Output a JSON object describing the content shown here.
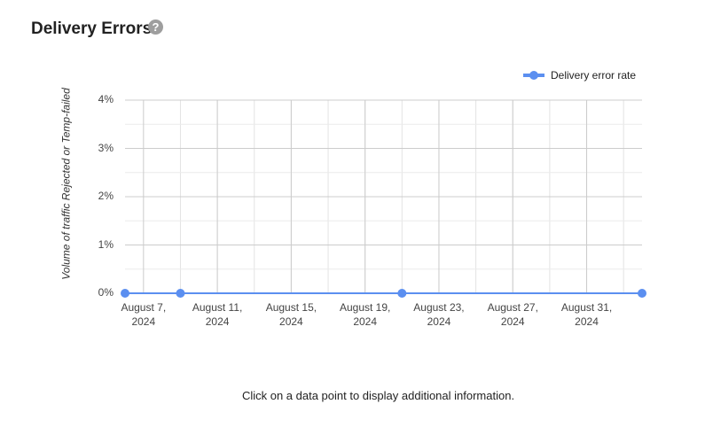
{
  "header": {
    "title": "Delivery Errors"
  },
  "chart_data": {
    "type": "line",
    "y_label": "Volume of traffic Rejected or Temp-failed",
    "x": [
      "2024-08-06",
      "2024-08-09",
      "2024-08-21",
      "2024-09-03"
    ],
    "series": [
      {
        "name": "Delivery error rate",
        "color": "#5b8ff0",
        "values": [
          0,
          0,
          0,
          0
        ]
      }
    ],
    "xlim": [
      "2024-08-06",
      "2024-09-03"
    ],
    "xticks": [
      {
        "value": "2024-08-07",
        "label": "August 7, 2024"
      },
      {
        "value": "2024-08-11",
        "label": "August 11, 2024"
      },
      {
        "value": "2024-08-15",
        "label": "August 15, 2024"
      },
      {
        "value": "2024-08-19",
        "label": "August 19, 2024"
      },
      {
        "value": "2024-08-23",
        "label": "August 23, 2024"
      },
      {
        "value": "2024-08-27",
        "label": "August 27, 2024"
      },
      {
        "value": "2024-08-31",
        "label": "August 31, 2024"
      }
    ],
    "ylim": [
      0,
      4
    ],
    "yticks": [
      {
        "value": 0,
        "label": "0%"
      },
      {
        "value": 1,
        "label": "1%"
      },
      {
        "value": 2,
        "label": "2%"
      },
      {
        "value": 3,
        "label": "3%"
      },
      {
        "value": 4,
        "label": "4%"
      }
    ],
    "grid": true,
    "legend": "top-right"
  },
  "footer": {
    "note": "Click on a data point to display additional information."
  }
}
